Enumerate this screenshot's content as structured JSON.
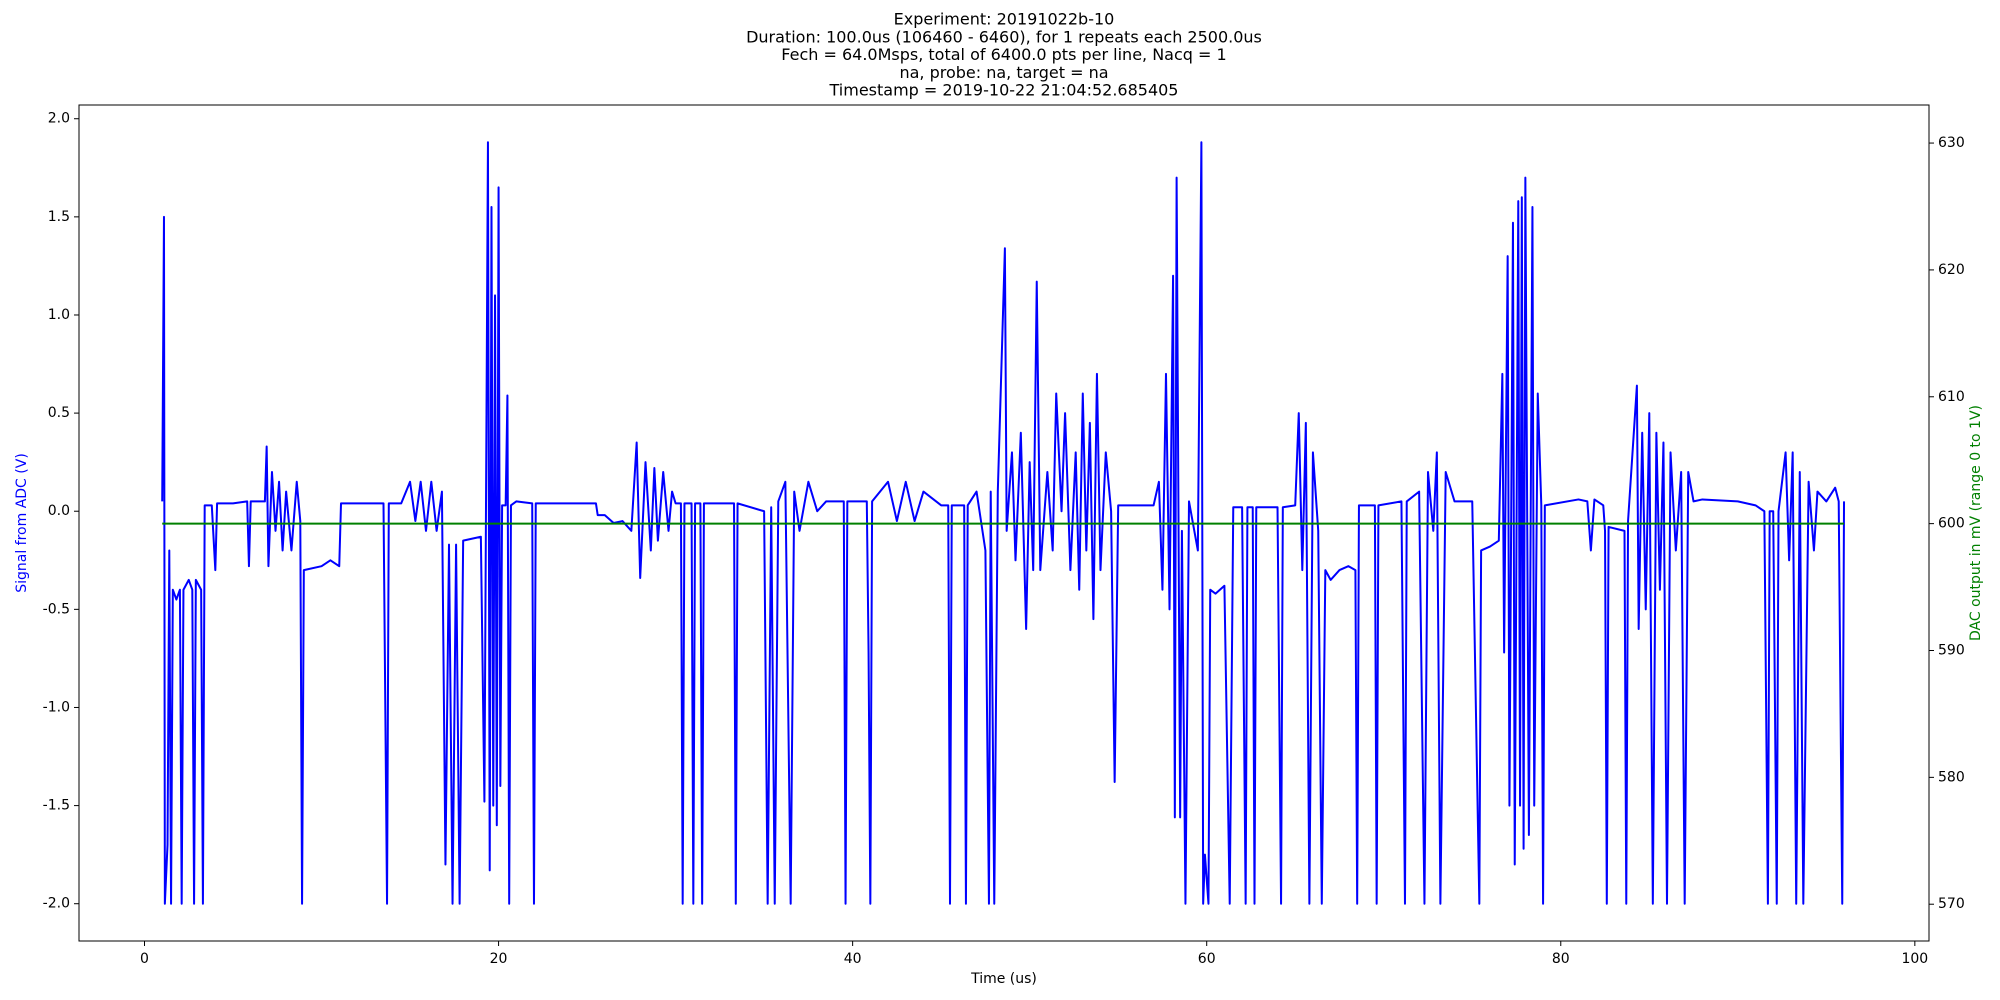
{
  "chart_data": {
    "type": "line",
    "title": [
      "Experiment: 20191022b-10",
      "Duration: 100.0us (106460 - 6460), for 1 repeats each 2500.0us",
      "Fech = 64.0Msps, total of 6400.0 pts per line, Nacq = 1",
      "na, probe: na, target = na",
      "Timestamp = 2019-10-22 21:04:52.685405"
    ],
    "xlabel": "Time (us)",
    "ylabel": "Signal from ADC (V)",
    "y2label": "DAC output in mV (range 0 to 1V)",
    "ylabel_color": "#0000ff",
    "y2label_color": "#008000",
    "xlim": [
      -3.7,
      100.8
    ],
    "xticks": [
      0,
      20,
      40,
      60,
      80,
      100
    ],
    "ylim": [
      -2.19,
      2.07
    ],
    "yticks": [
      {
        "value": -2,
        "label": "-2.0"
      },
      {
        "value": -1.5,
        "label": "-1.5"
      },
      {
        "value": -1,
        "label": "-1.0"
      },
      {
        "value": -0.5,
        "label": "-0.5"
      },
      {
        "value": 0,
        "label": "0.0"
      },
      {
        "value": 0.5,
        "label": "0.5"
      },
      {
        "value": 1,
        "label": "1.0"
      },
      {
        "value": 1.5,
        "label": "1.5"
      },
      {
        "value": 2,
        "label": "2.0"
      }
    ],
    "y2lim": [
      567.1,
      633.0
    ],
    "y2ticks": [
      570,
      580,
      590,
      600,
      610,
      620,
      630
    ],
    "series": [
      {
        "color": "#0000ff",
        "x": [
          1.0,
          1.1,
          1.15,
          1.3,
          1.4,
          1.5,
          1.6,
          1.8,
          2.0,
          2.1,
          2.2,
          2.5,
          2.7,
          2.8,
          2.9,
          3.2,
          3.3,
          3.4,
          3.8,
          4.0,
          4.1,
          5,
          5.8,
          5.9,
          6.0,
          6.8,
          6.9,
          7.0,
          7.2,
          7.4,
          7.6,
          7.8,
          8.0,
          8.3,
          8.6,
          8.8,
          8.9,
          9.0,
          10,
          10.5,
          11,
          11.1,
          13.5,
          13.7,
          13.8,
          14.5,
          15,
          15.3,
          15.6,
          15.9,
          16.2,
          16.5,
          16.8,
          17.0,
          17.2,
          17.4,
          17.6,
          17.8,
          18,
          19,
          19.2,
          19.4,
          19.5,
          19.6,
          19.7,
          19.8,
          19.9,
          20.0,
          20.1,
          20.2,
          20.4,
          20.5,
          20.6,
          20.7,
          21,
          21.9,
          22.0,
          22.1,
          25.5,
          25.6,
          26,
          26.5,
          27,
          27.5,
          27.8,
          28,
          28.3,
          28.6,
          28.8,
          29,
          29.3,
          29.6,
          29.8,
          30,
          30.3,
          30.4,
          30.5,
          30.9,
          31.0,
          31.1,
          31.4,
          31.5,
          31.6,
          33.3,
          33.4,
          33.5,
          35,
          35.2,
          35.4,
          35.6,
          35.8,
          36.2,
          36.5,
          36.7,
          37,
          37.5,
          38,
          38.5,
          39.5,
          39.6,
          39.7,
          40.8,
          40.9,
          41.0,
          41.1,
          42,
          42.5,
          43,
          43.5,
          44,
          45,
          45.4,
          45.5,
          45.6,
          46.3,
          46.4,
          46.5,
          47,
          47.5,
          47.7,
          47.8,
          48,
          48.2,
          48.6,
          48.7,
          49,
          49.2,
          49.5,
          49.8,
          50,
          50.2,
          50.4,
          50.6,
          51,
          51.3,
          51.5,
          51.8,
          52,
          52.3,
          52.6,
          52.8,
          53,
          53.2,
          53.4,
          53.6,
          53.8,
          54,
          54.3,
          54.6,
          54.8,
          55,
          57,
          57.3,
          57.5,
          57.7,
          57.9,
          58.1,
          58.2,
          58.3,
          58.5,
          58.6,
          58.8,
          59,
          59.5,
          59.7,
          59.8,
          59.9,
          60.1,
          60.2,
          60.5,
          61,
          61.3,
          61.5,
          62,
          62.2,
          62.3,
          62.6,
          62.7,
          62.8,
          64,
          64.2,
          64.3,
          65,
          65.2,
          65.4,
          65.6,
          65.8,
          66,
          66.3,
          66.5,
          66.7,
          67,
          67.5,
          68,
          68.4,
          68.5,
          68.6,
          69.5,
          69.6,
          69.7,
          71,
          71.2,
          71.3,
          72,
          72.3,
          72.5,
          72.8,
          73,
          73.2,
          73.5,
          74,
          75,
          75.4,
          75.5,
          76,
          76.5,
          76.7,
          76.8,
          77,
          77.1,
          77.3,
          77.4,
          77.6,
          77.7,
          77.8,
          77.9,
          78,
          78.2,
          78.4,
          78.5,
          78.7,
          78.9,
          79,
          79.1,
          81,
          81.5,
          81.7,
          81.9,
          82.4,
          82.5,
          82.6,
          82.7,
          83.6,
          83.7,
          83.8,
          84.3,
          84.4,
          84.6,
          84.8,
          85,
          85.2,
          85.4,
          85.6,
          85.8,
          86,
          86.2,
          86.5,
          86.8,
          87,
          87.2,
          87.5,
          88,
          90,
          91,
          91.5,
          91.7,
          91.8,
          92,
          92.2,
          92.3,
          92.7,
          92.9,
          93.1,
          93.3,
          93.5,
          93.7,
          94,
          94.3,
          94.5,
          95,
          95.5,
          95.7,
          95.9,
          96
        ],
        "values": [
          0.05,
          1.5,
          -2.0,
          -1.7,
          -0.2,
          -2.0,
          -0.4,
          -0.45,
          -0.4,
          -2.0,
          -0.4,
          -0.35,
          -0.4,
          -2.0,
          -0.35,
          -0.4,
          -2.0,
          0.03,
          0.03,
          -0.3,
          0.04,
          0.04,
          0.05,
          -0.28,
          0.05,
          0.05,
          0.33,
          -0.28,
          0.2,
          -0.1,
          0.15,
          -0.2,
          0.1,
          -0.2,
          0.15,
          -0.05,
          -2.0,
          -0.3,
          -0.28,
          -0.25,
          -0.28,
          0.04,
          0.04,
          -2.0,
          0.04,
          0.04,
          0.15,
          -0.05,
          0.15,
          -0.1,
          0.15,
          -0.1,
          0.1,
          -1.8,
          -0.17,
          -2.0,
          -0.17,
          -2.0,
          -0.15,
          -0.13,
          -1.48,
          1.88,
          -1.83,
          1.55,
          -1.5,
          1.1,
          -1.6,
          1.65,
          -1.4,
          0.03,
          0.03,
          0.59,
          -2.0,
          0.03,
          0.05,
          0.04,
          -2.0,
          0.04,
          0.04,
          -0.02,
          -0.02,
          -0.06,
          -0.05,
          -0.1,
          0.35,
          -0.34,
          0.25,
          -0.2,
          0.22,
          -0.15,
          0.2,
          -0.1,
          0.1,
          0.04,
          0.04,
          -2.0,
          0.04,
          0.04,
          -2.0,
          0.04,
          0.04,
          -2.0,
          0.04,
          0.04,
          -2.0,
          0.04,
          0.0,
          -2.0,
          0.02,
          -2.0,
          0.05,
          0.15,
          -2.0,
          0.1,
          -0.1,
          0.15,
          0.0,
          0.05,
          0.05,
          -2.0,
          0.05,
          0.05,
          -0.72,
          -2.0,
          0.05,
          0.15,
          -0.05,
          0.15,
          -0.05,
          0.1,
          0.03,
          0.03,
          -2.0,
          0.03,
          0.03,
          -2.0,
          0.03,
          0.1,
          -0.2,
          -2.0,
          0.1,
          -2.0,
          0.1,
          1.34,
          -0.1,
          0.3,
          -0.25,
          0.4,
          -0.6,
          0.25,
          -0.3,
          1.17,
          -0.3,
          0.2,
          -0.2,
          0.6,
          0.0,
          0.5,
          -0.3,
          0.3,
          -0.4,
          0.6,
          -0.2,
          0.45,
          -0.55,
          0.7,
          -0.3,
          0.3,
          0.0,
          -1.38,
          0.03,
          0.03,
          0.15,
          -0.4,
          0.7,
          -0.5,
          1.2,
          -1.56,
          1.7,
          -1.56,
          -0.1,
          -2.0,
          0.05,
          -0.2,
          1.88,
          -2.0,
          -1.75,
          -2.0,
          -0.4,
          -0.42,
          -0.38,
          -2.0,
          0.02,
          0.02,
          -2.0,
          0.02,
          0.02,
          -2.0,
          0.02,
          0.02,
          -2.0,
          0.02,
          0.03,
          0.5,
          -0.3,
          0.45,
          -2.0,
          0.3,
          -0.1,
          -2.0,
          -0.3,
          -0.35,
          -0.3,
          -0.28,
          -0.3,
          -2.0,
          0.03,
          0.03,
          -2.0,
          0.03,
          0.05,
          -2.0,
          0.05,
          0.1,
          -2.0,
          0.2,
          -0.1,
          0.3,
          -2.0,
          0.2,
          0.05,
          0.05,
          -2.0,
          -0.2,
          -0.18,
          -0.15,
          0.7,
          -0.72,
          1.3,
          -1.5,
          1.47,
          -1.8,
          1.58,
          -1.5,
          1.6,
          -1.72,
          1.7,
          -1.65,
          1.55,
          -1.5,
          0.6,
          0.03,
          -2.0,
          0.03,
          0.06,
          0.05,
          -0.2,
          0.06,
          0.03,
          -0.1,
          -2.0,
          -0.08,
          -0.1,
          -2.0,
          -0.05,
          0.64,
          -0.6,
          0.4,
          -0.5,
          0.5,
          -2.0,
          0.4,
          -0.4,
          0.35,
          -2.0,
          0.3,
          -0.2,
          0.2,
          -2.0,
          0.2,
          0.05,
          0.06,
          0.05,
          0.03,
          0.0,
          -2.0,
          0.0,
          0.0,
          -2.0,
          0.0,
          0.3,
          -0.25,
          0.3,
          -2.0,
          0.2,
          -2.0,
          0.15,
          -0.2,
          0.1,
          0.05,
          0.12,
          0.05,
          -2.0,
          0.05
        ]
      },
      {
        "color": "#008000",
        "axis": "y2",
        "x": [
          1,
          96
        ],
        "values": [
          600,
          600
        ]
      }
    ]
  }
}
